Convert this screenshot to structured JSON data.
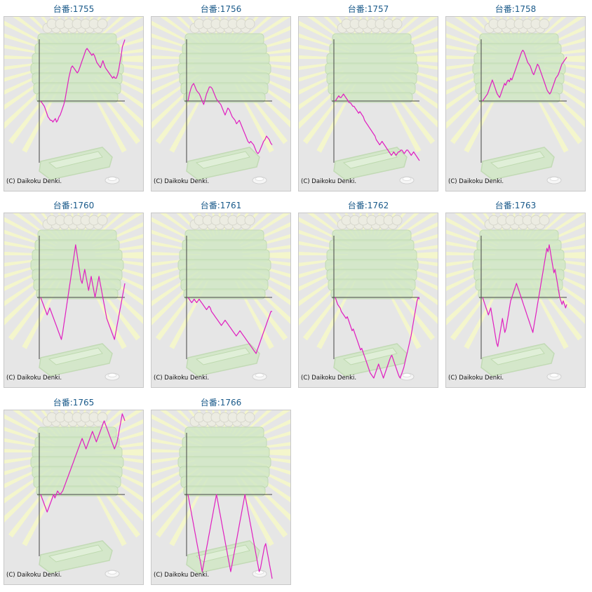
{
  "copyright": "(C) Daikoku Denki.",
  "colors": {
    "line": "#e020c0",
    "axis": "#444444",
    "title": "#1a5a8a",
    "panel_bg": "#e6e6e6",
    "rays": "#f4f6cc",
    "tower": "#d2e8c6",
    "tower_edge": "#bcd8ad"
  },
  "chart_data": [
    {
      "type": "line",
      "title": "台番:1755",
      "y": [
        0,
        -1,
        -2,
        -3,
        -5,
        -7,
        -9,
        -10,
        -11,
        -11,
        -12,
        -11,
        -10,
        -12,
        -11,
        -9,
        -8,
        -6,
        -4,
        -2,
        1,
        5,
        9,
        13,
        16,
        19,
        20,
        19,
        18,
        17,
        16,
        17,
        19,
        21,
        23,
        25,
        27,
        29,
        30,
        29,
        28,
        27,
        26,
        27,
        26,
        24,
        22,
        21,
        20,
        19,
        21,
        23,
        21,
        19,
        18,
        17,
        16,
        15,
        14,
        13,
        14,
        13,
        13,
        15,
        18,
        22,
        26,
        31,
        33,
        35
      ]
    },
    {
      "type": "line",
      "title": "台番:1756",
      "y": [
        0,
        4,
        7,
        9,
        10,
        8,
        6,
        5,
        4,
        2,
        0,
        -2,
        1,
        4,
        6,
        8,
        8,
        7,
        5,
        3,
        1,
        0,
        -1,
        -2,
        -4,
        -6,
        -8,
        -6,
        -4,
        -5,
        -7,
        -9,
        -10,
        -11,
        -13,
        -12,
        -11,
        -13,
        -15,
        -17,
        -19,
        -21,
        -23,
        -24,
        -23,
        -24,
        -25,
        -27,
        -29,
        -30,
        -29,
        -27,
        -25,
        -23,
        -22,
        -20,
        -21,
        -22,
        -24,
        -25
      ]
    },
    {
      "type": "line",
      "title": "台番:1757",
      "y": [
        0,
        1,
        2,
        3,
        2,
        2,
        3,
        4,
        3,
        2,
        1,
        0,
        -1,
        -1,
        -2,
        -3,
        -3,
        -4,
        -5,
        -6,
        -7,
        -6,
        -7,
        -8,
        -9,
        -11,
        -12,
        -13,
        -14,
        -15,
        -16,
        -17,
        -18,
        -19,
        -20,
        -22,
        -23,
        -24,
        -25,
        -24,
        -23,
        -24,
        -25,
        -26,
        -27,
        -28,
        -29,
        -30,
        -31,
        -30,
        -29,
        -30,
        -31,
        -30,
        -29,
        -29,
        -28,
        -28,
        -29,
        -30,
        -29,
        -28,
        -28,
        -29,
        -30,
        -31,
        -30,
        -29,
        -30,
        -31,
        -32,
        -33,
        -34
      ]
    },
    {
      "type": "line",
      "title": "台番:1758",
      "y": [
        0,
        1,
        2,
        3,
        4,
        6,
        8,
        10,
        12,
        10,
        8,
        6,
        4,
        3,
        2,
        4,
        6,
        8,
        10,
        9,
        11,
        12,
        11,
        13,
        12,
        14,
        16,
        18,
        20,
        22,
        24,
        26,
        28,
        29,
        28,
        26,
        24,
        22,
        21,
        20,
        18,
        16,
        15,
        17,
        19,
        21,
        20,
        18,
        16,
        14,
        12,
        10,
        8,
        6,
        5,
        4,
        5,
        7,
        9,
        11,
        13,
        14,
        15,
        17,
        19,
        21,
        22,
        23,
        24,
        25
      ]
    },
    {
      "type": "line",
      "title": "台番:1760",
      "y": [
        0,
        -2,
        -4,
        -6,
        -8,
        -10,
        -8,
        -6,
        -8,
        -10,
        -12,
        -14,
        -16,
        -18,
        -20,
        -22,
        -24,
        -20,
        -15,
        -10,
        -5,
        0,
        5,
        10,
        15,
        20,
        25,
        30,
        25,
        20,
        15,
        10,
        8,
        12,
        16,
        12,
        8,
        4,
        8,
        12,
        8,
        4,
        0,
        4,
        8,
        12,
        8,
        4,
        0,
        -4,
        -8,
        -12,
        -14,
        -16,
        -18,
        -20,
        -22,
        -24,
        -20,
        -16,
        -12,
        -8,
        -4,
        0,
        4,
        8
      ]
    },
    {
      "type": "line",
      "title": "台番:1761",
      "y": [
        0,
        -1,
        -2,
        -3,
        -2,
        -1,
        -2,
        -3,
        -2,
        -1,
        -2,
        -3,
        -4,
        -5,
        -6,
        -7,
        -6,
        -5,
        -6,
        -8,
        -9,
        -10,
        -11,
        -12,
        -13,
        -14,
        -15,
        -16,
        -15,
        -14,
        -13,
        -14,
        -15,
        -16,
        -17,
        -18,
        -19,
        -20,
        -21,
        -22,
        -21,
        -20,
        -19,
        -20,
        -21,
        -22,
        -23,
        -24,
        -25,
        -26,
        -27,
        -28,
        -29,
        -30,
        -31,
        -32,
        -30,
        -28,
        -26,
        -24,
        -22,
        -20,
        -18,
        -16,
        -14,
        -12,
        -10,
        -8,
        -8
      ]
    },
    {
      "type": "line",
      "title": "台番:1762",
      "y": [
        0,
        -2,
        -4,
        -5,
        -6,
        -8,
        -9,
        -10,
        -11,
        -12,
        -11,
        -13,
        -15,
        -17,
        -19,
        -18,
        -20,
        -22,
        -24,
        -26,
        -28,
        -30,
        -29,
        -31,
        -33,
        -35,
        -37,
        -39,
        -41,
        -43,
        -44,
        -45,
        -46,
        -44,
        -42,
        -40,
        -38,
        -40,
        -42,
        -44,
        -46,
        -44,
        -42,
        -40,
        -38,
        -36,
        -34,
        -33,
        -35,
        -37,
        -39,
        -41,
        -43,
        -45,
        -46,
        -44,
        -42,
        -40,
        -37,
        -34,
        -31,
        -28,
        -25,
        -22,
        -18,
        -14,
        -10,
        -6,
        -2,
        0,
        -1
      ]
    },
    {
      "type": "line",
      "title": "台番:1763",
      "y": [
        0,
        -2,
        -4,
        -6,
        -8,
        -10,
        -8,
        -6,
        -10,
        -14,
        -18,
        -22,
        -26,
        -28,
        -24,
        -20,
        -16,
        -12,
        -16,
        -20,
        -18,
        -14,
        -10,
        -6,
        -2,
        0,
        2,
        4,
        6,
        8,
        6,
        4,
        2,
        0,
        -2,
        -4,
        -6,
        -8,
        -10,
        -12,
        -14,
        -16,
        -18,
        -20,
        -16,
        -12,
        -8,
        -4,
        0,
        4,
        8,
        12,
        16,
        20,
        24,
        28,
        26,
        30,
        26,
        22,
        18,
        14,
        16,
        12,
        8,
        4,
        0,
        -2,
        -4,
        -2,
        -4,
        -6,
        -4
      ]
    },
    {
      "type": "line",
      "title": "台番:1765",
      "y": [
        0,
        -2,
        -4,
        -6,
        -8,
        -10,
        -8,
        -6,
        -4,
        -2,
        0,
        -2,
        0,
        2,
        1,
        0,
        1,
        2,
        4,
        6,
        8,
        10,
        12,
        14,
        16,
        18,
        20,
        22,
        24,
        26,
        28,
        30,
        32,
        30,
        28,
        26,
        28,
        30,
        32,
        34,
        36,
        34,
        32,
        30,
        32,
        34,
        36,
        38,
        40,
        42,
        40,
        38,
        36,
        34,
        32,
        30,
        28,
        26,
        28,
        30,
        34,
        38,
        42,
        46,
        44,
        42
      ]
    },
    {
      "type": "line",
      "title": "台番:1766",
      "y": [
        0,
        -4,
        -8,
        -12,
        -16,
        -20,
        -24,
        -28,
        -32,
        -36,
        -40,
        -44,
        -40,
        -36,
        -32,
        -28,
        -24,
        -20,
        -16,
        -12,
        -8,
        -4,
        0,
        -4,
        -8,
        -12,
        -16,
        -20,
        -24,
        -28,
        -32,
        -36,
        -40,
        -44,
        -40,
        -36,
        -32,
        -28,
        -24,
        -20,
        -16,
        -12,
        -8,
        -4,
        0,
        -4,
        -8,
        -12,
        -16,
        -20,
        -24,
        -28,
        -32,
        -36,
        -40,
        -44,
        -42,
        -38,
        -34,
        -30,
        -28,
        -32,
        -36,
        -40,
        -44,
        -48
      ]
    }
  ]
}
